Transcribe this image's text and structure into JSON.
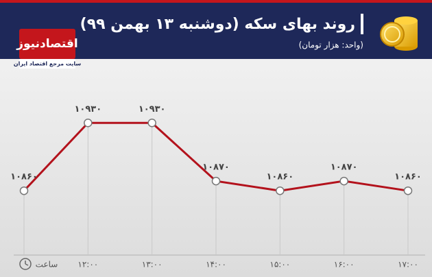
{
  "brand": {
    "name": "اقتصادنیوز",
    "tagline": "سایت مرجع اقتصاد ایران"
  },
  "chart_data": {
    "type": "line",
    "title": "روند بهای سکه (دوشنبه ۱۳ بهمن ۹۹)",
    "subtitle": "(واحد: هزار تومان)",
    "x_label": "ساعت",
    "categories": [
      null,
      "۱۲:۰۰",
      "۱۳:۰۰",
      "۱۴:۰۰",
      "۱۵:۰۰",
      "۱۶:۰۰",
      "۱۷:۰۰"
    ],
    "series": [
      {
        "name": "سکه",
        "color": "#b3121c",
        "values": [
          10860,
          10930,
          10930,
          10870,
          10860,
          10870,
          10860
        ],
        "value_labels": [
          "۱۰۸۶۰",
          "۱۰۹۳۰",
          "۱۰۹۳۰",
          "۱۰۸۷۰",
          "۱۰۸۶۰",
          "۱۰۸۷۰",
          "۱۰۸۶۰"
        ]
      }
    ],
    "ylim": [
      10800,
      10950
    ]
  }
}
